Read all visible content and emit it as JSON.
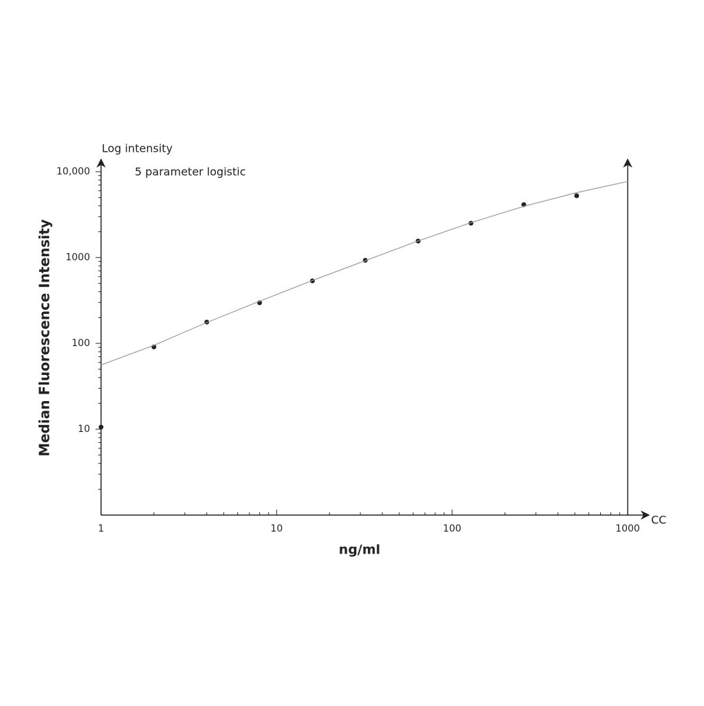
{
  "chart_data": {
    "type": "scatter",
    "title": "5 parameter logistic",
    "y_axis_top_label": "Log intensity",
    "ylabel": "Median Fluorescence Intensity",
    "xlabel": "ng/ml",
    "x_axis_end_label": "CC",
    "xscale": "log",
    "yscale": "log",
    "xlim": [
      1,
      1000
    ],
    "ylim": [
      1,
      10000
    ],
    "xticks": [
      1,
      10,
      100,
      1000
    ],
    "yticks": [
      10,
      100,
      1000,
      {
        "value": 10000,
        "label": "10,000"
      }
    ],
    "xminorticks": [
      2,
      3,
      4,
      5,
      6,
      7,
      8,
      9,
      20,
      30,
      40,
      50,
      60,
      70,
      80,
      90,
      200,
      300,
      400,
      500,
      600,
      700,
      800,
      900
    ],
    "yminorticks": [
      2,
      3,
      4,
      5,
      6,
      7,
      8,
      9,
      20,
      30,
      40,
      50,
      60,
      70,
      80,
      90,
      200,
      300,
      400,
      500,
      600,
      700,
      800,
      900,
      2000,
      3000,
      4000,
      5000,
      6000,
      7000,
      8000,
      9000
    ],
    "series": [
      {
        "style": "points",
        "color": "#222222",
        "x": [
          1,
          2,
          4,
          8,
          16,
          32,
          64,
          128,
          256,
          512
        ],
        "values": [
          10.6,
          91,
          177,
          297,
          535,
          929,
          1556,
          2512,
          4130,
          5248
        ]
      },
      {
        "style": "line",
        "color": "#9a9a9a",
        "x": [
          1,
          2,
          4,
          8,
          16,
          32,
          64,
          128,
          256,
          512,
          1000
        ],
        "values": [
          56,
          95,
          175,
          310,
          540,
          920,
          1560,
          2550,
          3950,
          5700,
          7700
        ]
      }
    ]
  }
}
